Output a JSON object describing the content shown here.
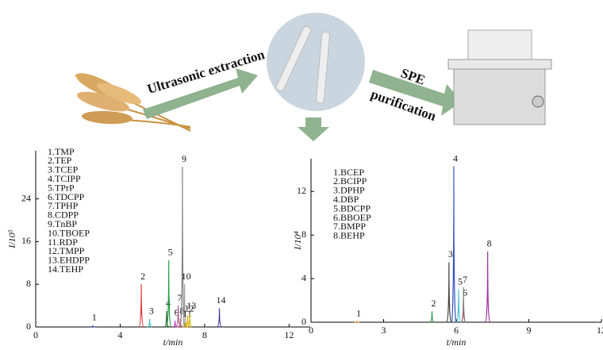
{
  "steps": {
    "extraction": "Ultrasonic extraction",
    "spe": "SPE",
    "purification": "purification"
  },
  "chromatograms": [
    {
      "ylabel": "I/10⁵",
      "xlabel": "t/min",
      "xlim": [
        0,
        13
      ],
      "ylim": [
        0,
        33
      ],
      "xticks": [
        0,
        4,
        8,
        12
      ],
      "yticks": [
        0,
        8,
        16,
        24
      ],
      "legend": [
        "1.TMP",
        "2.TEP",
        "3.TCEP",
        "4.TCIPP",
        "5.TPrP",
        "6.TDCPP",
        "7.TPHP",
        "8.CDPP",
        "9.TnBP",
        "10.TBOEP",
        "11.RDP",
        "12.TMPP",
        "13.EHDPP",
        "14.TEHP"
      ],
      "peaks": [
        {
          "label": "1",
          "x": 2.7,
          "height": 0.3,
          "color": "#3050c0"
        },
        {
          "label": "2",
          "x": 5.0,
          "height": 8,
          "color": "#e03030"
        },
        {
          "label": "3",
          "x": 5.4,
          "height": 1.5,
          "color": "#40c0d0"
        },
        {
          "label": "4",
          "x": 6.2,
          "height": 3,
          "color": "#305030"
        },
        {
          "label": "5",
          "x": 6.3,
          "height": 12.5,
          "color": "#20a040"
        },
        {
          "label": "6",
          "x": 6.6,
          "height": 1.2,
          "color": "#c040c0"
        },
        {
          "label": "7",
          "x": 6.75,
          "height": 4,
          "color": "#b05090"
        },
        {
          "label": "8",
          "x": 6.85,
          "height": 1.5,
          "color": "#e06080"
        },
        {
          "label": "9",
          "x": 6.95,
          "height": 30,
          "color": "#808080"
        },
        {
          "label": "10",
          "x": 7.05,
          "height": 8,
          "color": "#a0a0a0"
        },
        {
          "label": "11",
          "x": 7.1,
          "height": 1,
          "color": "#c0a000"
        },
        {
          "label": "12",
          "x": 7.2,
          "height": 2,
          "color": "#f0a000"
        },
        {
          "label": "13",
          "x": 7.3,
          "height": 2.5,
          "color": "#c0c000"
        },
        {
          "label": "14",
          "x": 8.7,
          "height": 3.5,
          "color": "#4030a0"
        }
      ]
    },
    {
      "ylabel": "I/10⁴",
      "xlabel": "t/min",
      "xlim": [
        0,
        12
      ],
      "ylim": [
        0,
        15
      ],
      "xticks": [
        0,
        3,
        6,
        9,
        12
      ],
      "yticks": [
        0,
        4,
        8,
        12
      ],
      "legend": [
        "1.BCEP",
        "2.BCIPP",
        "3.DPHP",
        "4.DBP",
        "5.BDCPP",
        "6.BBOEP",
        "7.BMPP",
        "8.BEHP"
      ],
      "peaks": [
        {
          "label": "1",
          "x": 1.9,
          "height": 0.1,
          "color": "#e08020"
        },
        {
          "label": "2",
          "x": 5.0,
          "height": 1,
          "color": "#20a040"
        },
        {
          "label": "3",
          "x": 5.7,
          "height": 5.5,
          "color": "#404040"
        },
        {
          "label": "4",
          "x": 5.9,
          "height": 14.3,
          "color": "#3050c0"
        },
        {
          "label": "5",
          "x": 6.1,
          "height": 3,
          "color": "#40c0d0"
        },
        {
          "label": "6",
          "x": 6.3,
          "height": 2,
          "color": "#e03030"
        },
        {
          "label": "7",
          "x": 6.3,
          "height": 3.2,
          "color": "#808080"
        },
        {
          "label": "8",
          "x": 7.3,
          "height": 6.5,
          "color": "#a030a0"
        }
      ]
    }
  ]
}
